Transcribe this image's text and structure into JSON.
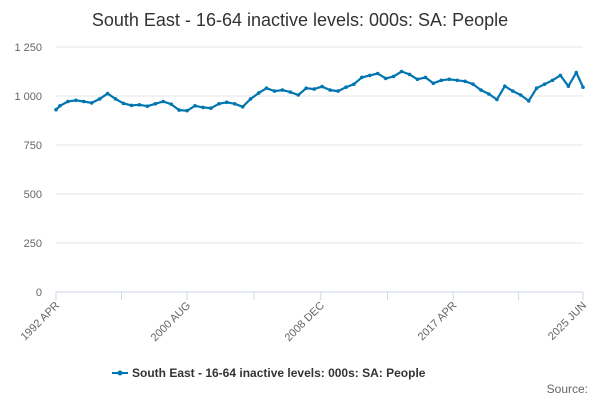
{
  "chart_data": {
    "type": "line",
    "title": "South East - 16-64 inactive levels: 000s: SA: People",
    "xlabel": "",
    "ylabel": "",
    "ylim": [
      0,
      1250
    ],
    "yticks": [
      0,
      250,
      500,
      750,
      1000,
      1250
    ],
    "ytick_labels": [
      "0",
      "250",
      "500",
      "750",
      "1 000",
      "1 250"
    ],
    "x_range": [
      "1992 APR",
      "2025 JUN"
    ],
    "x_ticks": [
      "1992 APR",
      "2000 AUG",
      "2008 DEC",
      "2017 APR",
      "2025 JUN"
    ],
    "legend_position": "bottom",
    "series": [
      {
        "name": "South East - 16-64 inactive levels: 000s: SA: People",
        "color": "#0075b0",
        "x": [
          1992.25,
          1992.5,
          1993.0,
          1993.5,
          1994.0,
          1994.5,
          1995.0,
          1995.5,
          1996.0,
          1996.5,
          1997.0,
          1997.5,
          1998.0,
          1998.5,
          1999.0,
          1999.5,
          2000.0,
          2000.5,
          2001.0,
          2001.5,
          2002.0,
          2002.5,
          2003.0,
          2003.5,
          2004.0,
          2004.5,
          2005.0,
          2005.5,
          2006.0,
          2006.5,
          2007.0,
          2007.5,
          2008.0,
          2008.5,
          2009.0,
          2009.5,
          2010.0,
          2010.5,
          2011.0,
          2011.5,
          2012.0,
          2012.5,
          2013.0,
          2013.5,
          2014.0,
          2014.5,
          2015.0,
          2015.5,
          2016.0,
          2016.5,
          2017.0,
          2017.5,
          2018.0,
          2018.5,
          2019.0,
          2019.5,
          2020.0,
          2020.5,
          2021.0,
          2021.5,
          2022.0,
          2022.5,
          2023.0,
          2023.5,
          2024.0,
          2024.5,
          2025.0,
          2025.42
        ],
        "values": [
          930,
          950,
          972,
          978,
          972,
          965,
          985,
          1012,
          985,
          962,
          952,
          955,
          948,
          960,
          972,
          958,
          928,
          925,
          950,
          942,
          938,
          960,
          968,
          960,
          945,
          985,
          1015,
          1040,
          1025,
          1030,
          1020,
          1005,
          1040,
          1035,
          1048,
          1030,
          1025,
          1045,
          1060,
          1095,
          1105,
          1115,
          1090,
          1100,
          1125,
          1110,
          1085,
          1095,
          1065,
          1080,
          1085,
          1080,
          1075,
          1060,
          1030,
          1010,
          982,
          1050,
          1025,
          1005,
          975,
          1040,
          1060,
          1080,
          1105,
          1050,
          1120,
          1045
        ]
      }
    ]
  },
  "legend": {
    "label": "South East - 16-64 inactive levels: 000s: SA: People"
  },
  "footer": {
    "source_label": "Source:"
  },
  "colors": {
    "series": "#0075b0",
    "grid": "#e6e6e6",
    "axis": "#ccd6eb",
    "text": "#666666"
  }
}
